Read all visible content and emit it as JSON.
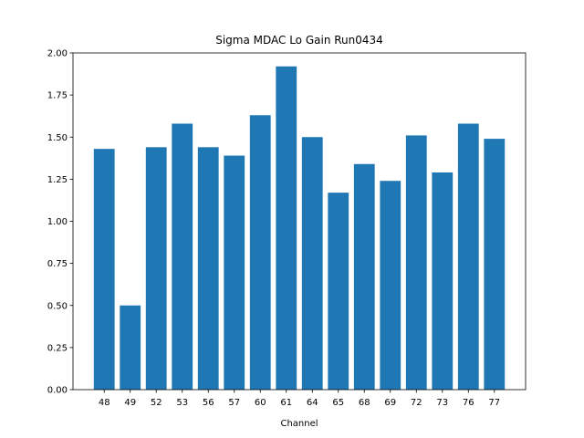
{
  "chart_data": {
    "type": "bar",
    "title": "Sigma MDAC Lo Gain Run0434",
    "xlabel": "Channel",
    "ylabel": "",
    "categories": [
      "48",
      "49",
      "52",
      "53",
      "56",
      "57",
      "60",
      "61",
      "64",
      "65",
      "68",
      "69",
      "72",
      "73",
      "76",
      "77"
    ],
    "values": [
      1.43,
      0.5,
      1.44,
      1.58,
      1.44,
      1.39,
      1.63,
      1.92,
      1.5,
      1.17,
      1.34,
      1.24,
      1.51,
      1.29,
      1.58,
      1.49
    ],
    "ylim": [
      0,
      2.0
    ],
    "yticks": [
      "0.00",
      "0.25",
      "0.50",
      "0.75",
      "1.00",
      "1.25",
      "1.50",
      "1.75",
      "2.00"
    ],
    "grid": false,
    "bar_color": "#1f77b4"
  }
}
